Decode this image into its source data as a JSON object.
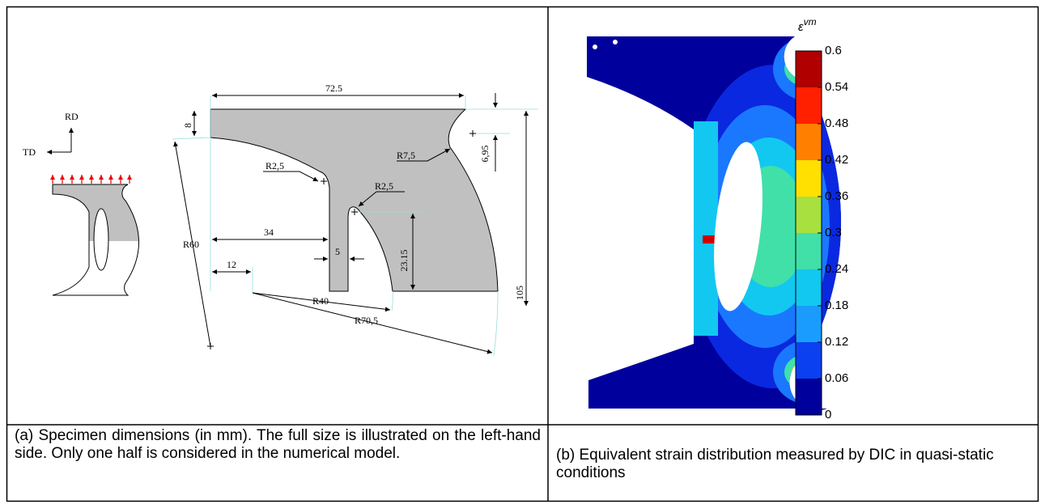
{
  "panel_a": {
    "axes": {
      "rd": "RD",
      "td": "TD"
    },
    "dimensions": [
      "72.5",
      "8",
      "R7,5",
      "6,95",
      "R2,5",
      "R2,5",
      "R60",
      "34",
      "5",
      "23.15",
      "12",
      "R40",
      "R70,5",
      "105"
    ],
    "caption": "(a) Specimen dimensions (in mm). The full size is illustrated on the left-hand side. Only one half is considered in the numerical model."
  },
  "panel_b": {
    "colorbar": {
      "symbol": "ε",
      "superscript": "vm",
      "ticks": [
        0.6,
        0.54,
        0.48,
        0.42,
        0.36,
        0.3,
        0.24,
        0.18,
        0.12,
        0.06,
        0
      ],
      "colors": [
        "#b00000",
        "#ff2000",
        "#ff8000",
        "#ffe000",
        "#a8e040",
        "#40e0a8",
        "#12c8f0",
        "#1a9cff",
        "#0a40f0",
        "#00009c"
      ]
    },
    "caption": "(b) Equivalent strain distribution measured by DIC in quasi-static conditions"
  }
}
